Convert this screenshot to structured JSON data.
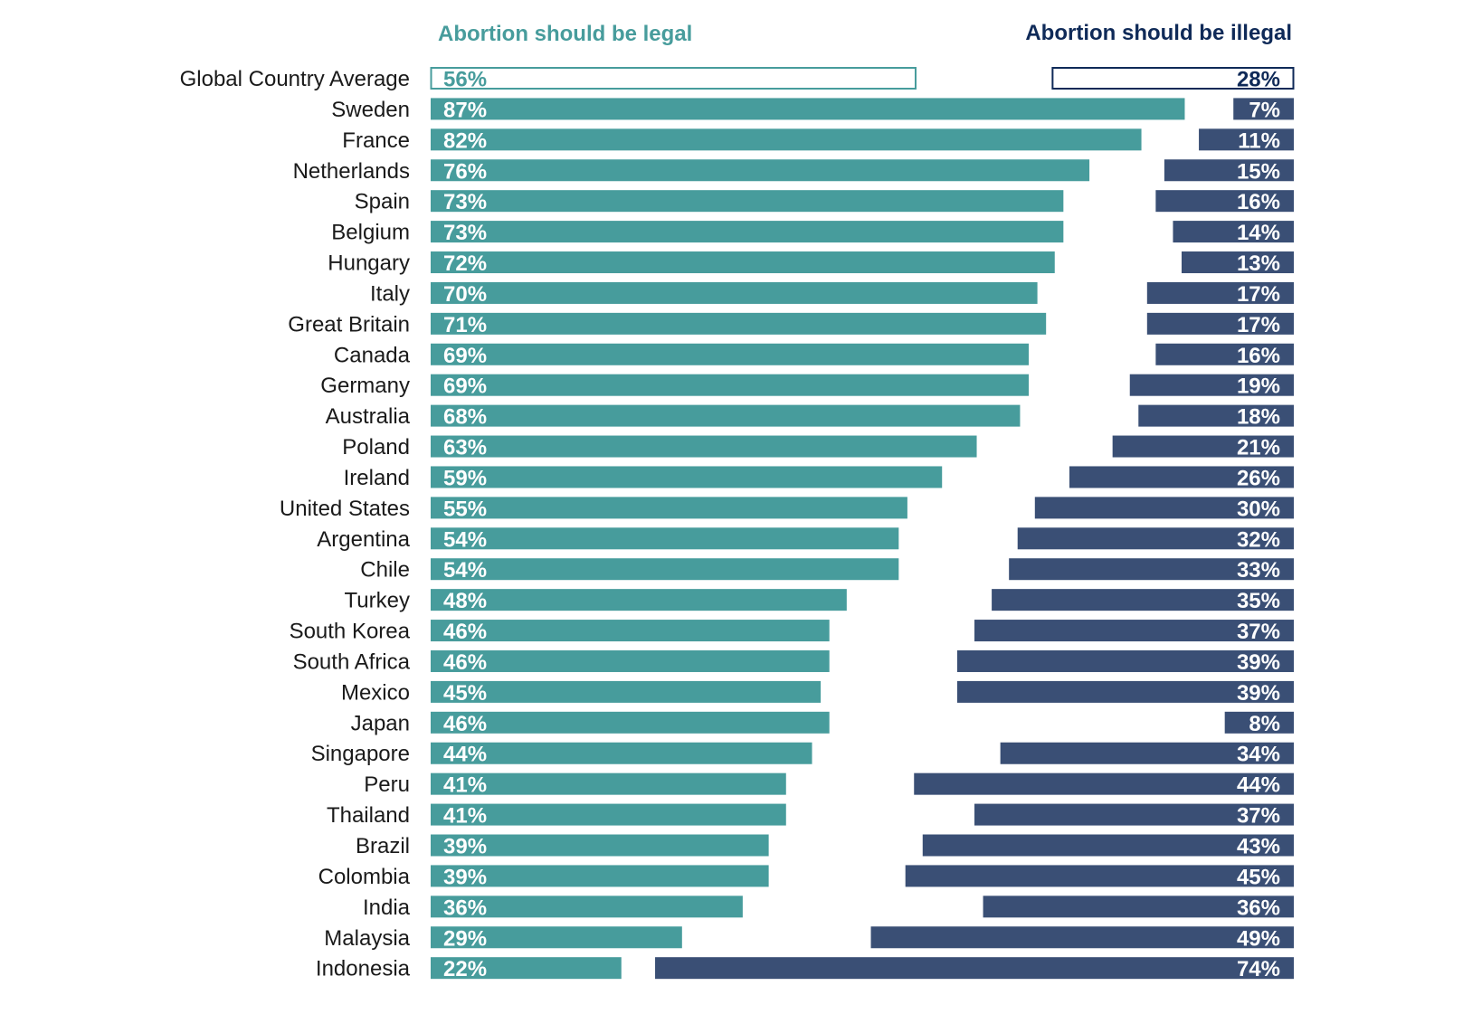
{
  "chart_data": {
    "type": "bar",
    "orientation": "horizontal",
    "layout": "diverging-split",
    "title": "",
    "series": [
      {
        "name": "Abortion should be legal",
        "color": "#479c9c",
        "values": [
          56,
          87,
          82,
          76,
          73,
          73,
          72,
          70,
          71,
          69,
          69,
          68,
          63,
          59,
          55,
          54,
          54,
          48,
          46,
          46,
          45,
          46,
          44,
          41,
          41,
          39,
          39,
          36,
          29,
          22
        ]
      },
      {
        "name": "Abortion should be illegal",
        "color": "#3a4f75",
        "values": [
          28,
          7,
          11,
          15,
          16,
          14,
          13,
          17,
          17,
          16,
          19,
          18,
          21,
          26,
          30,
          32,
          33,
          35,
          37,
          39,
          39,
          8,
          34,
          44,
          37,
          43,
          45,
          36,
          49,
          74
        ]
      }
    ],
    "categories": [
      "Global Country Average",
      "Sweden",
      "France",
      "Netherlands",
      "Spain",
      "Belgium",
      "Hungary",
      "Italy",
      "Great Britain",
      "Canada",
      "Germany",
      "Australia",
      "Poland",
      "Ireland",
      "United States",
      "Argentina",
      "Chile",
      "Turkey",
      "South Korea",
      "South Africa",
      "Mexico",
      "Japan",
      "Singapore",
      "Peru",
      "Thailand",
      "Brazil",
      "Colombia",
      "India",
      "Malaysia",
      "Indonesia"
    ],
    "highlighted_category": "Global Country Average",
    "value_suffix": "%",
    "xlabel": "",
    "ylabel": "",
    "xlim": [
      0,
      100
    ],
    "grid": false,
    "legend": "top",
    "header_colors": {
      "legal": "#479c9c",
      "illegal": "#0f2a58"
    }
  }
}
